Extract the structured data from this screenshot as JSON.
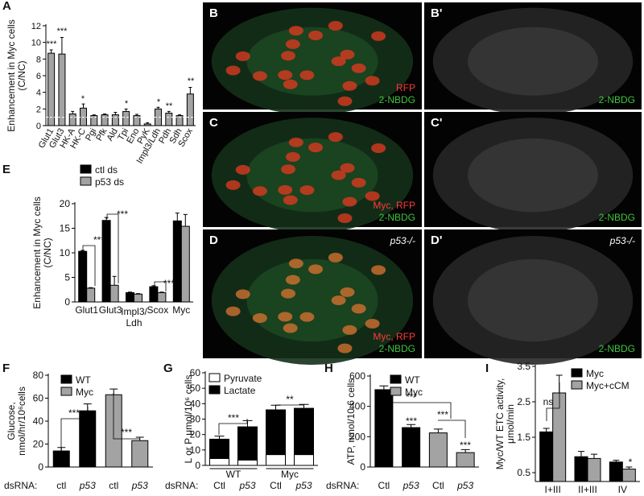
{
  "chart_data": [
    {
      "type": "bar",
      "label": "A",
      "ylabel": [
        "Enhancement in Myc cells",
        "(C/NC)"
      ],
      "categories": [
        "Glut1",
        "Glut3",
        "HK-A",
        "HK-C",
        "Pgi",
        "Pfk",
        "Ald",
        "Tpi",
        "Eno",
        "PyK",
        "Impl3/Ldh",
        "Pdh",
        "Sdh",
        "Scox"
      ],
      "series": [
        {
          "color": "#a3a3a3",
          "values": [
            8.7,
            8.6,
            1.4,
            2.1,
            1.2,
            1.3,
            1.3,
            1.7,
            1.2,
            0.2,
            2.0,
            1.5,
            1.2,
            3.8
          ],
          "errors": [
            0.4,
            2.0,
            0.3,
            0.5,
            0.1,
            0.1,
            0.3,
            0.3,
            0.15,
            0.15,
            0.2,
            0.2,
            0.1,
            0.8
          ]
        }
      ],
      "ylim": [
        0,
        12
      ],
      "yticks": [
        0,
        2,
        4,
        6,
        8,
        10,
        12
      ],
      "reference_line": 1,
      "annotations": [
        "***",
        "***",
        "*",
        "*",
        "*",
        "**",
        "**"
      ]
    },
    {
      "type": "bar",
      "label": "E",
      "ylabel": [
        "Enhancement in Myc cells",
        "(C/NC)"
      ],
      "categories": [
        "Glut1",
        "Glut3",
        [
          "Impl3/",
          "Ldh"
        ],
        "Scox",
        "Myc"
      ],
      "series": [
        {
          "name": "ctl ds",
          "color": "#000000",
          "values": [
            10.3,
            16.6,
            1.9,
            3.1,
            16.5
          ],
          "errors": [
            0.2,
            0.6,
            0.1,
            0.2,
            1.6
          ]
        },
        {
          "name": "p53 ds",
          "color": "#a3a3a3",
          "values": [
            2.8,
            3.4,
            1.6,
            1.9,
            15.4
          ],
          "errors": [
            0.1,
            1.8,
            0.1,
            0.1,
            2.4
          ]
        }
      ],
      "grouped": true,
      "ylim": [
        0,
        20
      ],
      "yticks": [
        0,
        5,
        10,
        15,
        20
      ],
      "annotations": [
        "***",
        "***",
        "***"
      ]
    },
    {
      "type": "bar",
      "label": "F",
      "ylabel": [
        "Glucose,",
        "nmol/hr/10⁶cells"
      ],
      "x_prefix": "dsRNA:",
      "categories": [
        "ctl",
        "p53",
        "ctl",
        "p53"
      ],
      "series": [
        {
          "name": "WT",
          "color": "#000000",
          "values": [
            14,
            49,
            null,
            null
          ],
          "errors": [
            3,
            6,
            null,
            null
          ]
        },
        {
          "name": "Myc",
          "color": "#a3a3a3",
          "values": [
            null,
            null,
            63,
            23
          ],
          "errors": [
            null,
            null,
            5,
            3
          ]
        }
      ],
      "ylim": [
        0,
        80
      ],
      "yticks": [
        0,
        20,
        40,
        60,
        80
      ],
      "annotations": [
        "***",
        "***"
      ]
    },
    {
      "type": "bar",
      "label": "G",
      "ylabel": [
        "L or P μmol/10⁶ cells"
      ],
      "x_prefix": "dsRNA:",
      "categories": [
        "Ctl",
        "p53",
        "Ctl",
        "p53"
      ],
      "groups": [
        "WT",
        "Myc"
      ],
      "series": [
        {
          "name": "Pyruvate",
          "color": "#ffffff",
          "values": [
            4.5,
            3.5,
            7,
            7
          ]
        },
        {
          "name": "Lactate",
          "color": "#000000",
          "values": [
            12.5,
            21.5,
            29,
            30
          ],
          "errors": [
            2,
            4,
            3,
            2.5
          ]
        }
      ],
      "stacked": true,
      "ylim": [
        0,
        60
      ],
      "yticks": [
        0,
        10,
        20,
        30,
        40,
        50,
        60
      ],
      "annotations": [
        "***",
        "**"
      ]
    },
    {
      "type": "bar",
      "label": "H",
      "ylabel": [
        "ATP, nmol/10 6 cells"
      ],
      "x_prefix": "dsRNA:",
      "categories": [
        "Ctl",
        "p53",
        "Ctl",
        "p53"
      ],
      "series": [
        {
          "name": "WT",
          "color": "#000000",
          "values": [
            510,
            260,
            null,
            null
          ],
          "errors": [
            25,
            20,
            null,
            null
          ]
        },
        {
          "name": "Myc",
          "color": "#a3a3a3",
          "values": [
            null,
            null,
            225,
            95
          ],
          "errors": [
            null,
            null,
            25,
            20
          ]
        }
      ],
      "ylim": [
        0,
        600
      ],
      "yticks": [
        0,
        200,
        400,
        600
      ],
      "annotations": [
        "***",
        "***",
        "***",
        "***"
      ]
    },
    {
      "type": "bar",
      "label": "I",
      "ylabel": [
        "Myc/WT ETC activity,",
        "μmol/min"
      ],
      "categories": [
        "I+III",
        "II+III",
        "IV"
      ],
      "series": [
        {
          "name": "Myc",
          "color": "#000000",
          "values": [
            1.65,
            0.95,
            0.8
          ],
          "errors": [
            0.1,
            0.15,
            0.05
          ]
        },
        {
          "name": "Myc+cCM",
          "color": "#a3a3a3",
          "values": [
            2.75,
            0.9,
            0.6
          ],
          "errors": [
            0.5,
            0.12,
            0.06
          ]
        }
      ],
      "grouped": true,
      "ylim": [
        0.25,
        3.5
      ],
      "yticks": [
        0.5,
        1.5,
        2.5,
        3.5
      ],
      "annotations": [
        "ns",
        "*"
      ]
    }
  ],
  "images": [
    {
      "label": "B",
      "texts": [
        {
          "text": "RFP",
          "color": "#ff3b3b"
        },
        {
          "text": "2-NBDG",
          "color": "#3fc43f"
        }
      ]
    },
    {
      "label": "B'",
      "texts": [
        {
          "text": "2-NBDG",
          "color": "#3fc43f"
        }
      ]
    },
    {
      "label": "C",
      "texts": [
        {
          "text": "Myc, RFP",
          "color": "#ff3b3b"
        },
        {
          "text": "2-NBDG",
          "color": "#3fc43f"
        }
      ]
    },
    {
      "label": "C'",
      "texts": [
        {
          "text": "2-NBDG",
          "color": "#3fc43f"
        }
      ]
    },
    {
      "label": "D",
      "top_text": "p53-/-",
      "texts": [
        {
          "text": "Myc, RFP",
          "color": "#ff3b3b"
        },
        {
          "text": "2-NBDG",
          "color": "#3fc43f"
        }
      ]
    },
    {
      "label": "D'",
      "top_text": "p53-/-",
      "texts": [
        {
          "text": "2-NBDG",
          "color": "#3fc43f"
        }
      ]
    }
  ]
}
